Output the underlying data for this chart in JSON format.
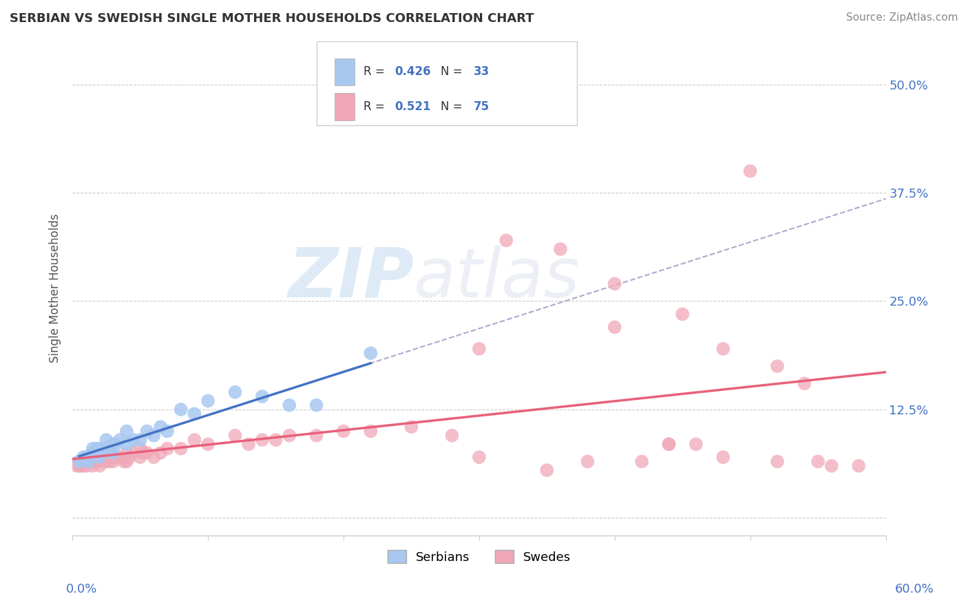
{
  "title": "SERBIAN VS SWEDISH SINGLE MOTHER HOUSEHOLDS CORRELATION CHART",
  "source": "Source: ZipAtlas.com",
  "ylabel": "Single Mother Households",
  "xmin": 0.0,
  "xmax": 0.6,
  "ymin": -0.02,
  "ymax": 0.55,
  "serbian_R": 0.426,
  "serbian_N": 33,
  "swedish_R": 0.521,
  "swedish_N": 75,
  "serbian_color": "#a8c8f0",
  "swedish_color": "#f0a8b8",
  "serbian_line_color": "#4472c4",
  "swedish_line_color": "#e8607a",
  "dash_line_color": "#aaaacc",
  "background_color": "#ffffff",
  "watermark_zip": "ZIP",
  "watermark_atlas": "atlas",
  "legend_serbian_label": "Serbians",
  "legend_swedish_label": "Swedes",
  "serbian_points_x": [
    0.005,
    0.008,
    0.01,
    0.012,
    0.015,
    0.015,
    0.018,
    0.02,
    0.02,
    0.022,
    0.025,
    0.025,
    0.028,
    0.03,
    0.03,
    0.032,
    0.035,
    0.04,
    0.04,
    0.045,
    0.05,
    0.055,
    0.06,
    0.065,
    0.07,
    0.08,
    0.09,
    0.1,
    0.12,
    0.14,
    0.16,
    0.18,
    0.22
  ],
  "serbian_points_y": [
    0.065,
    0.07,
    0.07,
    0.065,
    0.075,
    0.08,
    0.08,
    0.07,
    0.08,
    0.075,
    0.08,
    0.09,
    0.08,
    0.075,
    0.085,
    0.085,
    0.09,
    0.085,
    0.1,
    0.09,
    0.09,
    0.1,
    0.095,
    0.105,
    0.1,
    0.125,
    0.12,
    0.135,
    0.145,
    0.14,
    0.13,
    0.13,
    0.19
  ],
  "swedish_points_x": [
    0.003,
    0.005,
    0.005,
    0.006,
    0.007,
    0.008,
    0.009,
    0.01,
    0.01,
    0.012,
    0.013,
    0.015,
    0.015,
    0.015,
    0.016,
    0.018,
    0.02,
    0.02,
    0.02,
    0.022,
    0.025,
    0.025,
    0.027,
    0.028,
    0.03,
    0.03,
    0.032,
    0.035,
    0.038,
    0.04,
    0.04,
    0.042,
    0.045,
    0.05,
    0.05,
    0.052,
    0.055,
    0.06,
    0.065,
    0.07,
    0.08,
    0.09,
    0.1,
    0.12,
    0.13,
    0.14,
    0.15,
    0.16,
    0.18,
    0.2,
    0.22,
    0.25,
    0.28,
    0.3,
    0.35,
    0.38,
    0.4,
    0.42,
    0.44,
    0.46,
    0.48,
    0.5,
    0.52,
    0.54,
    0.56,
    0.32,
    0.36,
    0.4,
    0.44,
    0.48,
    0.52,
    0.3,
    0.45,
    0.55,
    0.58
  ],
  "swedish_points_y": [
    0.06,
    0.06,
    0.065,
    0.06,
    0.065,
    0.06,
    0.065,
    0.06,
    0.07,
    0.065,
    0.07,
    0.06,
    0.065,
    0.075,
    0.065,
    0.07,
    0.06,
    0.065,
    0.075,
    0.07,
    0.065,
    0.07,
    0.065,
    0.075,
    0.065,
    0.075,
    0.07,
    0.07,
    0.065,
    0.065,
    0.075,
    0.07,
    0.075,
    0.07,
    0.08,
    0.075,
    0.075,
    0.07,
    0.075,
    0.08,
    0.08,
    0.09,
    0.085,
    0.095,
    0.085,
    0.09,
    0.09,
    0.095,
    0.095,
    0.1,
    0.1,
    0.105,
    0.095,
    0.07,
    0.055,
    0.065,
    0.22,
    0.065,
    0.085,
    0.085,
    0.195,
    0.4,
    0.175,
    0.155,
    0.06,
    0.32,
    0.31,
    0.27,
    0.085,
    0.07,
    0.065,
    0.195,
    0.235,
    0.065,
    0.06
  ]
}
